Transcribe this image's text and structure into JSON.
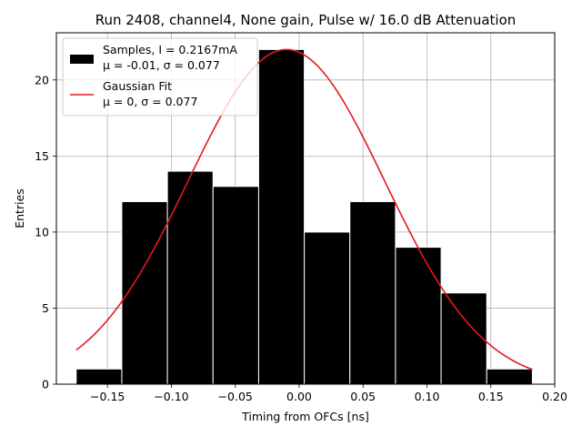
{
  "chart_data": {
    "type": "bar",
    "title": "Run 2408, channel4, None gain, Pulse w/ 16.0 dB Attenuation",
    "xlabel": "Timing from OFCs [ns]",
    "ylabel": "Entries",
    "xlim": [
      -0.19,
      0.2
    ],
    "ylim": [
      0,
      23.1
    ],
    "grid": true,
    "legend_position": "top-left",
    "xticks": [
      -0.15,
      -0.1,
      -0.05,
      0.0,
      0.05,
      0.1,
      0.15,
      0.2
    ],
    "xtick_labels": [
      "−0.15",
      "−0.10",
      "−0.05",
      "0.00",
      "0.05",
      "0.10",
      "0.15",
      "0.20"
    ],
    "yticks": [
      0,
      5,
      10,
      15,
      20
    ],
    "ytick_labels": [
      "0",
      "5",
      "10",
      "15",
      "20"
    ],
    "histogram": {
      "bin_edges": [
        -0.1745,
        -0.1388,
        -0.1031,
        -0.0674,
        -0.0317,
        0.004,
        0.0397,
        0.0754,
        0.1111,
        0.1468,
        0.1825
      ],
      "counts": [
        1,
        12,
        14,
        13,
        22,
        10,
        12,
        9,
        6,
        1
      ],
      "color": "#000000"
    },
    "fit": {
      "type": "gaussian",
      "amplitude": 22.0,
      "mu": -0.01,
      "sigma": 0.077,
      "x_range": [
        -0.1745,
        0.1825
      ],
      "color": "#e31a1c"
    },
    "legend": [
      {
        "kind": "patch",
        "color": "#000000",
        "line1": "Samples, I = 0.2167mA",
        "line2_prefix": "μ = -0.01, σ = 0.077"
      },
      {
        "kind": "line",
        "color": "#e31a1c",
        "line1": "Gaussian Fit",
        "line2_prefix": "μ = 0, σ = 0.077"
      }
    ]
  }
}
